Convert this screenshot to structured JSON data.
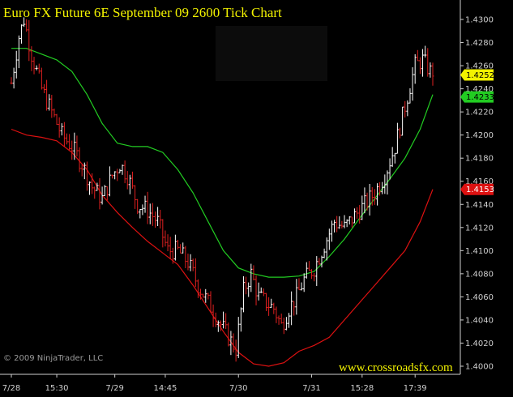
{
  "chart_data": {
    "type": "bar",
    "title": "Euro FX Future 6E September 09 2600 Tick Chart",
    "copyright": "© 2009 NinjaTrader, LLC",
    "website": "www.crossroadsfx.com",
    "ylim": [
      1.3995,
      1.4315
    ],
    "y_ticks": [
      "1.4300",
      "1.4280",
      "1.4260",
      "1.4240",
      "1.4220",
      "1.4200",
      "1.4180",
      "1.4160",
      "1.4140",
      "1.4120",
      "1.4100",
      "1.4080",
      "1.4060",
      "1.4040",
      "1.4020",
      "1.4000"
    ],
    "x_ticks": [
      {
        "label": "7/28",
        "index": 0
      },
      {
        "label": "15:30",
        "index": 18
      },
      {
        "label": "7/29",
        "index": 41
      },
      {
        "label": "14:45",
        "index": 61
      },
      {
        "label": "7/30",
        "index": 90
      },
      {
        "label": "7/31",
        "index": 119
      },
      {
        "label": "15:28",
        "index": 139
      },
      {
        "label": "17:39",
        "index": 160
      }
    ],
    "grid": false,
    "colors": {
      "background": "#000000",
      "text": "#f2f200",
      "up_bar": "#ffffff",
      "down_bar": "#e02020",
      "upper_band": "#22cc22",
      "lower_band": "#dd1111",
      "axis": "#cfcfcf"
    },
    "value_badges": [
      {
        "label": "1.4252",
        "value": 1.4252,
        "color": "#f2f200",
        "text_color": "#000000"
      },
      {
        "label": "1.4233",
        "value": 1.4233,
        "color": "#22cc22",
        "text_color": "#000000"
      },
      {
        "label": "1.4153",
        "value": 1.4153,
        "color": "#dd1111",
        "text_color": "#ffffff"
      }
    ],
    "price_path": [
      [
        0,
        1.4245
      ],
      [
        3,
        1.4285
      ],
      [
        5,
        1.43
      ],
      [
        8,
        1.427
      ],
      [
        12,
        1.424
      ],
      [
        16,
        1.422
      ],
      [
        20,
        1.42
      ],
      [
        24,
        1.419
      ],
      [
        28,
        1.4175
      ],
      [
        32,
        1.4155
      ],
      [
        36,
        1.4145
      ],
      [
        40,
        1.4165
      ],
      [
        43,
        1.4175
      ],
      [
        46,
        1.4165
      ],
      [
        50,
        1.414
      ],
      [
        54,
        1.4135
      ],
      [
        58,
        1.4125
      ],
      [
        62,
        1.41
      ],
      [
        66,
        1.41
      ],
      [
        70,
        1.409
      ],
      [
        74,
        1.407
      ],
      [
        78,
        1.4055
      ],
      [
        82,
        1.404
      ],
      [
        86,
        1.4025
      ],
      [
        89,
        1.4015
      ],
      [
        92,
        1.4065
      ],
      [
        95,
        1.408
      ],
      [
        98,
        1.406
      ],
      [
        101,
        1.4055
      ],
      [
        104,
        1.405
      ],
      [
        107,
        1.4035
      ],
      [
        110,
        1.405
      ],
      [
        113,
        1.406
      ],
      [
        116,
        1.4075
      ],
      [
        120,
        1.4085
      ],
      [
        124,
        1.4105
      ],
      [
        128,
        1.4125
      ],
      [
        132,
        1.412
      ],
      [
        136,
        1.413
      ],
      [
        140,
        1.414
      ],
      [
        144,
        1.415
      ],
      [
        148,
        1.4165
      ],
      [
        152,
        1.419
      ],
      [
        156,
        1.4225
      ],
      [
        160,
        1.426
      ],
      [
        163,
        1.4265
      ],
      [
        166,
        1.4255
      ]
    ],
    "upper_band": [
      [
        0,
        1.4275
      ],
      [
        6,
        1.4275
      ],
      [
        12,
        1.427
      ],
      [
        18,
        1.4265
      ],
      [
        24,
        1.4255
      ],
      [
        30,
        1.4235
      ],
      [
        36,
        1.421
      ],
      [
        42,
        1.4193
      ],
      [
        48,
        1.419
      ],
      [
        54,
        1.419
      ],
      [
        60,
        1.4185
      ],
      [
        66,
        1.417
      ],
      [
        72,
        1.415
      ],
      [
        78,
        1.4125
      ],
      [
        84,
        1.41
      ],
      [
        90,
        1.4085
      ],
      [
        96,
        1.408
      ],
      [
        102,
        1.4077
      ],
      [
        108,
        1.4077
      ],
      [
        114,
        1.4078
      ],
      [
        120,
        1.4082
      ],
      [
        126,
        1.4095
      ],
      [
        132,
        1.411
      ],
      [
        138,
        1.4128
      ],
      [
        144,
        1.4145
      ],
      [
        150,
        1.4162
      ],
      [
        156,
        1.418
      ],
      [
        162,
        1.4205
      ],
      [
        167,
        1.4235
      ]
    ],
    "lower_band": [
      [
        0,
        1.4205
      ],
      [
        6,
        1.42
      ],
      [
        12,
        1.4198
      ],
      [
        18,
        1.4195
      ],
      [
        24,
        1.4185
      ],
      [
        30,
        1.417
      ],
      [
        36,
        1.4148
      ],
      [
        42,
        1.4133
      ],
      [
        48,
        1.412
      ],
      [
        54,
        1.4108
      ],
      [
        60,
        1.4098
      ],
      [
        66,
        1.4088
      ],
      [
        72,
        1.407
      ],
      [
        78,
        1.405
      ],
      [
        84,
        1.403
      ],
      [
        90,
        1.4012
      ],
      [
        96,
        1.4002
      ],
      [
        102,
        1.4
      ],
      [
        108,
        1.4003
      ],
      [
        114,
        1.4013
      ],
      [
        120,
        1.4018
      ],
      [
        126,
        1.4025
      ],
      [
        132,
        1.404
      ],
      [
        138,
        1.4055
      ],
      [
        144,
        1.407
      ],
      [
        150,
        1.4085
      ],
      [
        156,
        1.41
      ],
      [
        162,
        1.4125
      ],
      [
        167,
        1.4153
      ]
    ],
    "bar_count": 168
  }
}
